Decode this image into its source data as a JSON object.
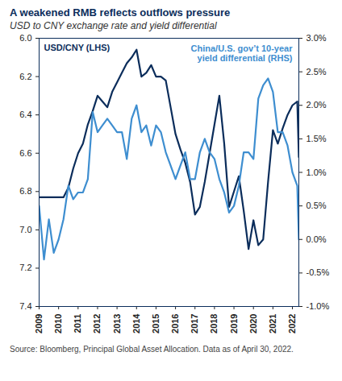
{
  "chart_data": {
    "type": "line",
    "title": "A weakened RMB reflects outflows pressure",
    "subtitle": "USD to CNY exchange rate and yield differential",
    "caption": "Source: Bloomberg, Principal Global Asset Allocation. Data as of April 30, 2022.",
    "x": [
      2009,
      2009.25,
      2009.5,
      2009.75,
      2010,
      2010.25,
      2010.5,
      2010.75,
      2011,
      2011.25,
      2011.5,
      2011.75,
      2012,
      2012.25,
      2012.5,
      2012.75,
      2013,
      2013.25,
      2013.5,
      2013.75,
      2014,
      2014.25,
      2014.5,
      2014.75,
      2015,
      2015.25,
      2015.5,
      2015.75,
      2016,
      2016.25,
      2016.5,
      2016.75,
      2017,
      2017.25,
      2017.5,
      2017.75,
      2018,
      2018.25,
      2018.5,
      2018.75,
      2019,
      2019.25,
      2019.5,
      2019.75,
      2020,
      2020.25,
      2020.5,
      2020.75,
      2021,
      2021.25,
      2021.5,
      2021.75,
      2022,
      2022.25,
      2022.33
    ],
    "xlim": [
      2009,
      2022.33
    ],
    "xticks": [
      2009,
      2010,
      2011,
      2012,
      2013,
      2014,
      2015,
      2016,
      2017,
      2018,
      2019,
      2020,
      2021,
      2022
    ],
    "ylim": [
      7.4,
      6.0
    ],
    "yticks": [
      {
        "value": 6.0,
        "label": "6.0"
      },
      6.2,
      6.4,
      6.6,
      6.8,
      {
        "value": 7.0,
        "label": "7.0"
      },
      7.2,
      7.4
    ],
    "y2lim": [
      -1.0,
      3.0
    ],
    "y2ticks": [
      {
        "value": -1.0,
        "label": "-1.0%"
      },
      {
        "value": -0.5,
        "label": "-0.5%"
      },
      {
        "value": 0.0,
        "label": "0.0%"
      },
      {
        "value": 0.5,
        "label": "0.5%"
      },
      {
        "value": 1.0,
        "label": "1.0%"
      },
      {
        "value": 1.5,
        "label": "1.5%"
      },
      {
        "value": 2.0,
        "label": "2.0%"
      },
      {
        "value": 2.5,
        "label": "2.5%"
      },
      {
        "value": 3.0,
        "label": "3.0%"
      }
    ],
    "grid": false,
    "series": [
      {
        "name": "USD/CNY (LHS)",
        "color": "#0b2d5b",
        "values": [
          6.83,
          6.83,
          6.83,
          6.83,
          6.83,
          6.83,
          6.78,
          6.68,
          6.6,
          6.55,
          6.45,
          6.38,
          6.3,
          6.33,
          6.36,
          6.28,
          6.23,
          6.18,
          6.13,
          6.1,
          6.06,
          6.2,
          6.18,
          6.14,
          6.2,
          6.2,
          6.22,
          6.36,
          6.5,
          6.58,
          6.65,
          6.75,
          6.92,
          6.88,
          6.75,
          6.6,
          6.45,
          6.3,
          6.55,
          6.88,
          6.8,
          6.72,
          6.9,
          7.1,
          6.95,
          7.08,
          7.05,
          6.75,
          6.48,
          6.55,
          6.47,
          6.4,
          6.35,
          6.33,
          6.62
        ]
      },
      {
        "name": "China/U.S. gov’t 10-year\nyield differential (RHS)",
        "color": "#3e8ed0",
        "axis": "y2",
        "values": [
          0.5,
          -0.3,
          0.3,
          -0.2,
          0.0,
          0.3,
          0.8,
          0.6,
          0.7,
          0.7,
          0.9,
          1.9,
          1.6,
          1.7,
          1.8,
          1.7,
          1.6,
          1.6,
          1.2,
          1.8,
          2.0,
          1.6,
          1.7,
          1.4,
          1.7,
          1.6,
          1.3,
          1.1,
          0.9,
          1.1,
          1.3,
          0.9,
          0.9,
          1.3,
          1.5,
          1.3,
          1.2,
          0.9,
          0.7,
          0.4,
          0.5,
          0.8,
          1.3,
          1.3,
          1.2,
          2.1,
          2.3,
          2.4,
          2.2,
          1.6,
          1.6,
          1.4,
          1.0,
          0.8,
          0.0
        ]
      }
    ]
  }
}
